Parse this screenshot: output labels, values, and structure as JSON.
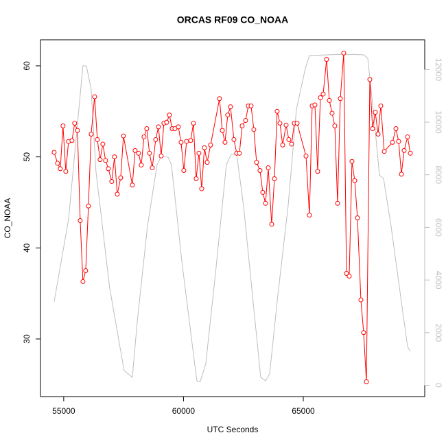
{
  "chart_data": {
    "type": "line",
    "title": "ORCAS RF09 CO_NOAA",
    "x_label": "UTC Seconds",
    "y_label": "CO_NOAA",
    "xlim": [
      54030,
      70070
    ],
    "xticks": [
      55000,
      60000,
      65000
    ],
    "ylim": [
      23.67,
      62.86
    ],
    "yticks": [
      30,
      40,
      50,
      60
    ],
    "y2lim": [
      -430,
      13130
    ],
    "y2ticks": [
      0,
      2000,
      4000,
      6000,
      8000,
      10000,
      12000
    ],
    "series": [
      {
        "color": "#ff0000",
        "markers": true,
        "x": [
          54599,
          54742,
          54857,
          54971,
          55086,
          55201,
          55344,
          55458,
          55573,
          55688,
          55802,
          55917,
          56031,
          56146,
          56289,
          56404,
          56518,
          56633,
          56748,
          56862,
          57005,
          57120,
          57235,
          57378,
          57493,
          57865,
          57980,
          58123,
          58237,
          58352,
          58467,
          58581,
          58696,
          58839,
          58954,
          59068,
          59183,
          59298,
          59412,
          59527,
          59641,
          59785,
          59899,
          60014,
          60128,
          60300,
          60415,
          60529,
          60644,
          60759,
          60873,
          60988,
          61131,
          61504,
          61618,
          61733,
          61847,
          61962,
          62105,
          62220,
          62334,
          62449,
          62592,
          62707,
          62821,
          62936,
          63051,
          63194,
          63309,
          63423,
          63538,
          63681,
          63796,
          63910,
          64025,
          64140,
          64283,
          64397,
          64512,
          64626,
          64741,
          65114,
          65257,
          65371,
          65486,
          65601,
          65715,
          65830,
          65973,
          66088,
          66202,
          66317,
          66432,
          66546,
          66689,
          66804,
          66918,
          67033,
          67148,
          67262,
          67405,
          67520,
          67635,
          67778,
          67893,
          68007,
          68122,
          68236,
          68380,
          68724,
          68867,
          68981,
          69096,
          69210,
          69354,
          69468
        ],
        "values": [
          50.5,
          49.3,
          48.7,
          53.4,
          48.4,
          51.7,
          51.8,
          53.7,
          52.9,
          43.0,
          36.3,
          37.5,
          44.6,
          52.5,
          56.6,
          51.9,
          49.7,
          51.4,
          49.6,
          48.7,
          47.3,
          50.0,
          45.9,
          47.7,
          52.3,
          46.9,
          50.7,
          50.4,
          49.1,
          52.2,
          53.1,
          50.4,
          48.8,
          51.9,
          53.3,
          50.1,
          53.7,
          53.8,
          54.6,
          53.1,
          53.1,
          53.3,
          51.6,
          48.5,
          51.7,
          51.8,
          53.7,
          47.6,
          50.4,
          46.5,
          51.0,
          49.4,
          51.3,
          56.4,
          52.9,
          51.6,
          54.6,
          55.5,
          51.9,
          50.4,
          50.4,
          53.4,
          54.0,
          55.6,
          55.6,
          53.0,
          49.4,
          48.5,
          46.1,
          44.9,
          48.8,
          42.6,
          47.6,
          55.0,
          53.7,
          51.3,
          53.5,
          51.9,
          51.4,
          53.7,
          53.7,
          50.1,
          43.6,
          55.6,
          55.7,
          48.4,
          56.5,
          56.9,
          60.7,
          56.2,
          54.8,
          53.4,
          44.9,
          56.4,
          61.4,
          37.2,
          36.9,
          49.5,
          47.4,
          43.3,
          34.3,
          30.7,
          25.3,
          58.5,
          53.1,
          54.9,
          52.5,
          55.6,
          50.6,
          51.6,
          53.1,
          51.7,
          48.1,
          50.7,
          52.2,
          50.4
        ]
      },
      {
        "color": "#bebebe",
        "axis": "y2",
        "markers": false,
        "x": [
          54599,
          55201,
          55630,
          55802,
          55946,
          56146,
          56347,
          56920,
          57521,
          57865,
          58066,
          58495,
          58896,
          59068,
          59355,
          59498,
          59928,
          60358,
          60558,
          60701,
          60931,
          61360,
          61790,
          61991,
          62220,
          62507,
          62936,
          63223,
          63423,
          63595,
          63939,
          64368,
          64712,
          65085,
          65257,
          66661,
          67520,
          67692,
          67950,
          68179,
          68351,
          68666,
          69096,
          69354,
          69468
        ],
        "values": [
          3170,
          6300,
          10470,
          12140,
          12140,
          11250,
          8120,
          3690,
          560,
          300,
          2390,
          6040,
          8380,
          8700,
          8670,
          8380,
          4730,
          1600,
          170,
          140,
          820,
          4470,
          8380,
          8780,
          8780,
          6820,
          2910,
          300,
          170,
          430,
          3430,
          6820,
          10470,
          12040,
          12530,
          12580,
          12560,
          12430,
          10210,
          7990,
          7860,
          6040,
          3170,
          1470,
          1290
        ]
      }
    ]
  }
}
